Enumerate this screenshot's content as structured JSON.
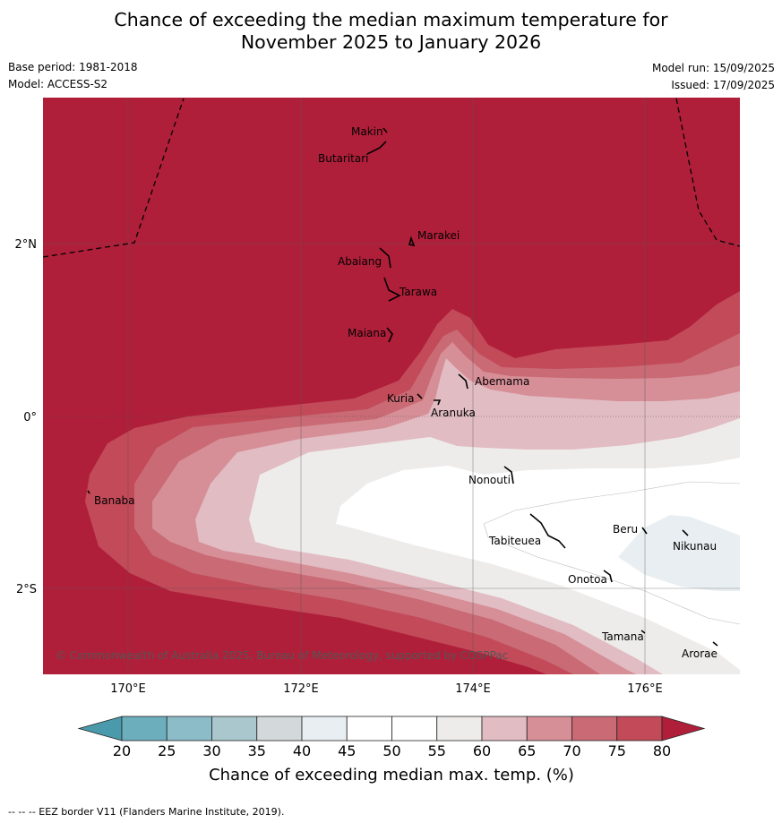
{
  "title_line1": "Chance of exceeding the median maximum temperature for",
  "title_line2": "November 2025 to January 2026",
  "base_period": "Base period: 1981-2018",
  "model": "Model: ACCESS-S2",
  "model_run": "Model run: 15/09/2025",
  "issued": "Issued: 17/09/2025",
  "credit": "© Commonwealth of Australia 2025, Bureau of Meteorology, supported by COSPPac",
  "axes": {
    "lon_labels": [
      "170°E",
      "172°E",
      "174°E",
      "176°E"
    ],
    "lat_labels": [
      "2°N",
      "0°",
      "2°S"
    ]
  },
  "islands": [
    "Makin",
    "Butaritari",
    "Marakei",
    "Abaiang",
    "Tarawa",
    "Maiana",
    "Abemama",
    "Kuria",
    "Aranuka",
    "Nonouti",
    "Banaba",
    "Tabiteuea",
    "Beru",
    "Nikunau",
    "Onotoa",
    "Tamana",
    "Arorae"
  ],
  "colorbar": {
    "title": "Chance of exceeding median max. temp. (%)",
    "ticks": [
      "20",
      "25",
      "30",
      "35",
      "40",
      "45",
      "50",
      "55",
      "60",
      "65",
      "70",
      "75",
      "80"
    ],
    "colors": [
      "#4a9aab",
      "#6daebd",
      "#8cbcc8",
      "#a9c7cc",
      "#d3d8da",
      "#e8eef1",
      "#ffffff",
      "#ffffff",
      "#eeeceb",
      "#e1bcc2",
      "#d68e97",
      "#c96a74",
      "#c24a59",
      "#b01f3a"
    ]
  },
  "footnote": "--  --  -- EEZ border V11 (Flanders Marine Institute, 2019)."
}
